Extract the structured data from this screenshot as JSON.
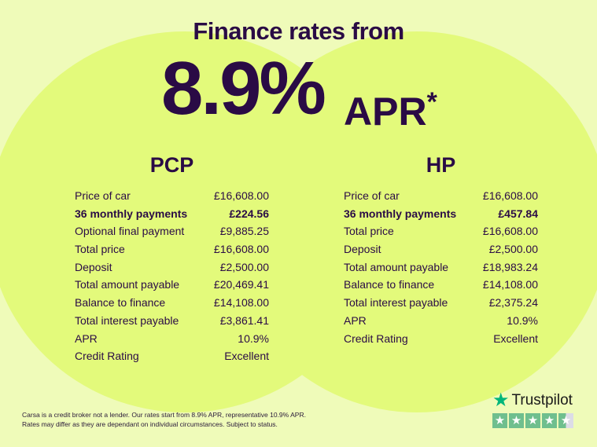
{
  "header": {
    "title": "Finance rates from",
    "rate": "8.9%",
    "apr": "APR",
    "asterisk": "*"
  },
  "pcp": {
    "title": "PCP",
    "rows": [
      {
        "label": "Price of car",
        "value": "£16,608.00"
      },
      {
        "label": "36 monthly payments",
        "value": "£224.56",
        "bold": true
      },
      {
        "label": "Optional final payment",
        "value": "£9,885.25"
      },
      {
        "label": "Total price",
        "value": "£16,608.00"
      },
      {
        "label": "Deposit",
        "value": "£2,500.00"
      },
      {
        "label": "Total amount payable",
        "value": "£20,469.41"
      },
      {
        "label": "Balance to finance",
        "value": "£14,108.00"
      },
      {
        "label": "Total interest payable",
        "value": "£3,861.41"
      },
      {
        "label": "APR",
        "value": "10.9%"
      },
      {
        "label": "Credit Rating",
        "value": "Excellent"
      }
    ]
  },
  "hp": {
    "title": "HP",
    "rows": [
      {
        "label": "Price of car",
        "value": "£16,608.00"
      },
      {
        "label": "36 monthly payments",
        "value": "£457.84",
        "bold": true
      },
      {
        "label": "Total price",
        "value": "£16,608.00"
      },
      {
        "label": "Deposit",
        "value": "£2,500.00"
      },
      {
        "label": "Total amount payable",
        "value": "£18,983.24"
      },
      {
        "label": "Balance to finance",
        "value": "£14,108.00"
      },
      {
        "label": "Total interest payable",
        "value": "£2,375.24"
      },
      {
        "label": "APR",
        "value": "10.9%"
      },
      {
        "label": "Credit Rating",
        "value": "Excellent"
      }
    ]
  },
  "disclaimer": {
    "line1": "Carsa is a credit broker not a lender. Our rates start from 8.9% APR, representative 10.9% APR.",
    "line2": "Rates may differ as they are dependant on individual circumstances. Subject to status."
  },
  "trustpilot": {
    "name": "Trustpilot",
    "rating": 4.5,
    "max": 5,
    "icon": "star-icon"
  },
  "colors": {
    "background": "#effbb9",
    "circles": "#e3fa7b",
    "text": "#2a0b45",
    "trustpilot": "#00b67a"
  }
}
